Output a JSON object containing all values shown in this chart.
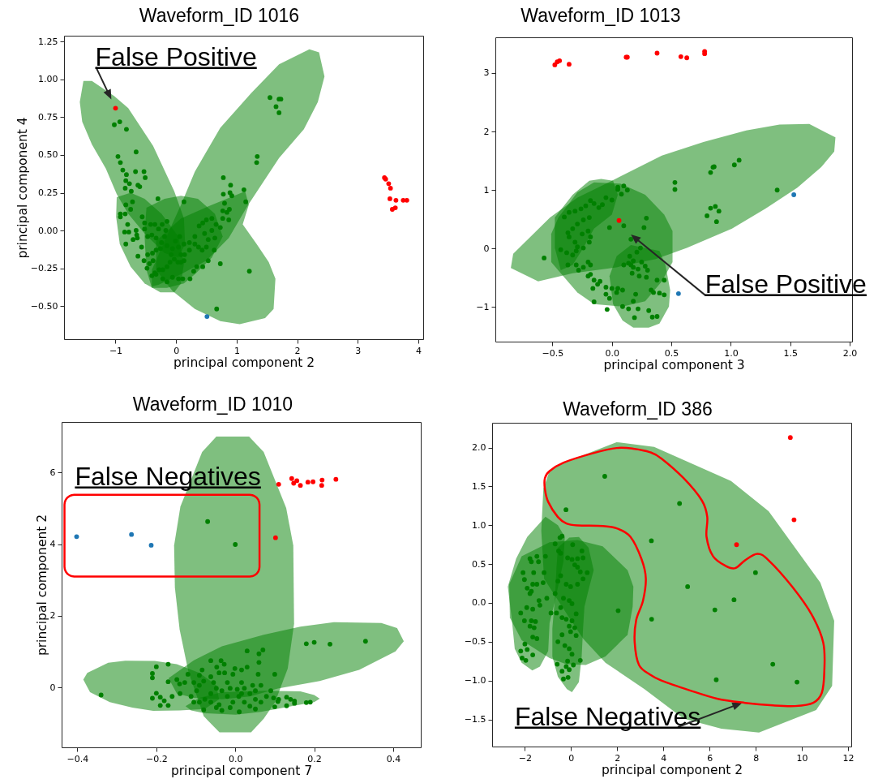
{
  "chart_data": [
    {
      "type": "scatter",
      "title": "Waveform_ID 1016",
      "xlabel": "principal component 2",
      "ylabel": "principal component 4",
      "xlim": [
        -1.85,
        4.08
      ],
      "ylim": [
        -0.72,
        1.29
      ],
      "xticks": [
        {
          "value": -1,
          "label": "−1"
        },
        0,
        1,
        2,
        3,
        4
      ],
      "yticks": [
        {
          "value": -0.5,
          "label": "−0.50"
        },
        {
          "value": -0.25,
          "label": "−0.25"
        },
        {
          "value": 0,
          "label": "0.00"
        },
        0.25,
        {
          "value": 0.5,
          "label": "0.50"
        },
        0.75,
        {
          "value": 1,
          "label": "1.00"
        },
        1.25
      ],
      "series": [
        {
          "type": "area",
          "color": "#008000",
          "x": [
            -1.53,
            -1.39,
            -1.02,
            -0.79,
            -0.38,
            -0.03,
            0.13,
            0.15,
            0.04,
            -0.19,
            -0.52,
            -0.79,
            -0.98,
            -1.16,
            -1.39,
            -1.55,
            -1.59
          ],
          "values": [
            0.99,
            0.99,
            0.89,
            0.81,
            0.56,
            0.26,
            0.08,
            -0.09,
            -0.18,
            -0.15,
            -0.02,
            0.11,
            0.24,
            0.41,
            0.57,
            0.72,
            0.85
          ]
        },
        {
          "type": "area",
          "color": "#008000",
          "x": [
            2.2,
            2.36,
            2.45,
            2.34,
            2.11,
            1.7,
            1.19,
            0.87,
            0.5,
            0.08,
            -0.29,
            -0.4,
            -0.4,
            -0.19,
            0.08,
            0.31,
            0.73,
            1.24,
            1.7
          ],
          "values": [
            1.2,
            1.18,
            1.02,
            0.85,
            0.67,
            0.48,
            0.17,
            -0.05,
            -0.2,
            -0.29,
            -0.36,
            -0.37,
            -0.26,
            -0.07,
            0.17,
            0.39,
            0.68,
            0.91,
            1.1
          ]
        },
        {
          "type": "area",
          "color": "#008000",
          "x": [
            -0.98,
            -0.75,
            -0.52,
            -0.24,
            0.04,
            0.13,
            0.08,
            -0.03,
            -0.26,
            -0.52,
            -0.75,
            -0.93,
            -0.99
          ],
          "values": [
            0.22,
            0.25,
            0.21,
            0.11,
            -0.04,
            -0.22,
            -0.35,
            -0.41,
            -0.41,
            -0.35,
            -0.24,
            -0.09,
            0.09
          ]
        },
        {
          "type": "area",
          "color": "#008000",
          "x": [
            -0.49,
            -0.19,
            0.08,
            0.36,
            0.64,
            0.77,
            0.59,
            0.31,
            0.13,
            -0.15,
            -0.4,
            -0.49,
            -0.52
          ],
          "values": [
            0.15,
            0.21,
            0.23,
            0.21,
            0.11,
            -0.04,
            -0.18,
            -0.29,
            -0.35,
            -0.38,
            -0.38,
            -0.26,
            -0.04
          ]
        },
        {
          "type": "area",
          "color": "#008000",
          "x": [
            -0.33,
            0.08,
            0.59,
            1.14,
            1.2,
            1.1,
            1.33,
            1.53,
            1.64,
            1.61,
            1.47,
            1.05,
            0.73,
            0.31,
            -0.06,
            -0.33
          ],
          "values": [
            -0.07,
            0.08,
            0.17,
            0.26,
            0.17,
            0.04,
            -0.09,
            -0.21,
            -0.32,
            -0.52,
            -0.58,
            -0.62,
            -0.6,
            -0.52,
            -0.4,
            -0.26
          ]
        },
        {
          "color": "#008000",
          "x": [
            -0.92,
            -0.92,
            -0.84,
            -0.8,
            -0.85,
            -0.78,
            -0.66,
            -0.65,
            -0.71,
            -0.64,
            -0.83,
            -0.63,
            -0.57,
            -0.53,
            -0.48,
            -0.44,
            -0.38,
            -0.35,
            -0.28,
            -0.22,
            -0.15,
            -0.1,
            -0.03,
            0.03,
            0.08,
            0.08,
            0.14,
            0.22,
            0.31,
            0.37,
            0.43,
            0.5,
            0.53,
            0.64,
            0.59,
            0.66,
            0.73,
            0.77,
            0.87,
            0.84,
            0.77,
            0.88,
            0.8,
            0.59,
            0.5,
            0.44,
            0.38,
            0.47,
            0.31,
            0.22,
            0.13,
            0.04,
            -0.06,
            -0.15,
            -0.24,
            -0.33,
            -0.4,
            -0.47,
            -0.52,
            -0.52,
            -0.56,
            -0.42,
            -0.35,
            -0.29,
            -0.23,
            -0.15,
            -0.17,
            -0.19,
            -0.26,
            -0.33,
            -0.39,
            -0.47,
            -0.22,
            -0.15,
            -0.06,
            0.04,
            0.11,
            0.23,
            0.29,
            0.34,
            0.44,
            0.53,
            0.63,
            0.06,
            -0.01,
            -0.08,
            0.13,
            -0.33,
            -0.4,
            -0.75,
            -0.72,
            -0.83,
            -1.02,
            -0.93,
            -0.82,
            -0.96,
            -0.92,
            -0.66,
            -0.88,
            -0.82,
            -0.67,
            -0.53,
            -0.51,
            -0.77,
            -0.83,
            -0.63,
            -0.6,
            -0.84,
            -0.74,
            0.78,
            0.9,
            0.89,
            0.92,
            1.12,
            1.15,
            0.78,
            -0.3,
            0.13,
            1.55,
            1.7,
            1.73,
            1.65,
            1.7,
            1.34,
            1.33,
            1.21,
            0.67,
            0.73
          ],
          "values": [
            0.11,
            0.09,
            0.11,
            0.04,
            -0.01,
            -0.01,
            0.0,
            -0.03,
            -0.06,
            -0.05,
            -0.09,
            -0.17,
            -0.11,
            -0.2,
            -0.25,
            -0.22,
            -0.2,
            -0.28,
            -0.26,
            -0.26,
            -0.24,
            -0.21,
            -0.19,
            -0.21,
            -0.21,
            -0.16,
            -0.16,
            -0.13,
            -0.09,
            -0.11,
            -0.13,
            -0.11,
            -0.06,
            -0.05,
            0.0,
            0.04,
            0.02,
            0.08,
            0.07,
            0.12,
            0.13,
            0.14,
            0.18,
            0.08,
            0.07,
            0.05,
            0.03,
            -0.02,
            -0.04,
            -0.08,
            -0.09,
            -0.11,
            -0.12,
            -0.1,
            -0.08,
            -0.05,
            -0.03,
            -0.04,
            0.01,
            0.05,
            0.09,
            0.04,
            0.04,
            0.01,
            0.04,
            0.06,
            0.0,
            -0.04,
            -0.12,
            -0.13,
            -0.15,
            -0.16,
            -0.32,
            -0.34,
            -0.31,
            -0.32,
            -0.32,
            -0.32,
            -0.27,
            -0.24,
            -0.24,
            -0.2,
            -0.13,
            -0.04,
            -0.07,
            -0.16,
            -0.2,
            -0.29,
            -0.3,
            0.14,
            0.19,
            0.17,
            0.7,
            0.72,
            0.67,
            0.49,
            0.45,
            0.52,
            0.4,
            0.37,
            0.39,
            0.39,
            0.35,
            0.31,
            0.33,
            0.3,
            0.29,
            0.28,
            0.26,
            0.35,
            0.3,
            0.25,
            0.23,
            0.27,
            0.19,
            0.24,
            0.21,
            0.19,
            0.88,
            0.87,
            0.87,
            0.82,
            0.78,
            0.49,
            0.45,
            -0.27,
            -0.52,
            -0.22
          ]
        },
        {
          "color": "#ff0000",
          "x": [
            -1.0,
            3.44,
            3.46,
            3.51,
            3.54,
            3.53,
            3.63,
            3.75,
            3.81,
            3.62,
            3.57
          ],
          "values": [
            0.81,
            0.35,
            0.34,
            0.31,
            0.28,
            0.21,
            0.2,
            0.2,
            0.2,
            0.15,
            0.14
          ]
        },
        {
          "color": "#1f77b4",
          "x": [
            0.51
          ],
          "values": [
            -0.57
          ]
        }
      ],
      "annotations": [
        {
          "text": "False Positive",
          "x": -1.0,
          "y": 0.81
        }
      ]
    },
    {
      "type": "scatter",
      "title": "Waveform_ID 1013",
      "xlabel": "principal component 3",
      "xlim": [
        -0.98,
        2.02
      ],
      "ylim": [
        -1.59,
        3.61
      ],
      "xticks": [
        {
          "value": -0.5,
          "label": "−0.5"
        },
        {
          "value": 0,
          "label": "0.0"
        },
        0.5,
        {
          "value": 1,
          "label": "1.0"
        },
        1.5,
        {
          "value": 2,
          "label": "2.0"
        }
      ],
      "yticks": [
        {
          "value": -1,
          "label": "−1"
        },
        0,
        1,
        2,
        3
      ],
      "series": [
        {
          "type": "area",
          "color": "#008000",
          "x": [
            -0.83,
            -0.52,
            -0.29,
            0.0,
            0.42,
            0.77,
            1.13,
            1.41,
            1.66,
            1.88,
            1.87,
            1.76,
            1.56,
            1.29,
            1.01,
            0.63,
            0.37,
            0.04,
            -0.33,
            -0.62,
            -0.85
          ],
          "values": [
            -0.09,
            0.53,
            0.87,
            1.16,
            1.59,
            1.82,
            2.02,
            2.12,
            2.13,
            1.9,
            1.66,
            1.39,
            1.04,
            0.68,
            0.34,
            0.01,
            -0.18,
            -0.32,
            -0.42,
            -0.56,
            -0.33
          ]
        },
        {
          "type": "area",
          "color": "#008000",
          "x": [
            -0.48,
            -0.33,
            -0.19,
            -0.09,
            0.01,
            0.05,
            0.0,
            -0.15,
            -0.24,
            -0.33,
            -0.43,
            -0.48
          ],
          "values": [
            0.53,
            0.92,
            1.16,
            1.19,
            1.16,
            0.92,
            0.58,
            0.34,
            0.01,
            -0.28,
            -0.37,
            0.01
          ]
        },
        {
          "type": "area",
          "color": "#008000",
          "x": [
            -0.51,
            -0.45,
            -0.29,
            -0.15,
            0.07,
            0.28,
            0.44,
            0.51,
            0.51,
            0.42,
            0.28,
            0.09,
            -0.15,
            -0.29,
            -0.43,
            -0.51
          ],
          "values": [
            0.25,
            0.53,
            0.96,
            1.13,
            1.11,
            0.92,
            0.58,
            0.3,
            -0.23,
            -0.56,
            -0.9,
            -0.99,
            -0.95,
            -0.75,
            -0.42,
            -0.23
          ]
        },
        {
          "type": "area",
          "color": "#008000",
          "x": [
            -0.02,
            0.04,
            0.16,
            0.4,
            0.45,
            0.49,
            0.48,
            0.4,
            0.31,
            0.18,
            0.09,
            0.01
          ],
          "values": [
            -0.47,
            -0.13,
            0.06,
            -0.04,
            -0.28,
            -0.71,
            -0.99,
            -1.28,
            -1.35,
            -1.35,
            -1.23,
            -0.95
          ]
        },
        {
          "color": "#008000",
          "x": [
            -0.57,
            -0.4,
            1.39,
            0.53,
            0.53,
            0.83,
            0.85,
            0.86,
            1.03,
            1.07,
            0.8,
            0.83,
            0.87,
            0.9,
            0.88,
            0.29,
            0.27,
            0.1,
            -0.02,
            0.05,
            0.1,
            0.13,
            0.08,
            0.05,
            -0.36,
            -0.31,
            -0.26,
            -0.22,
            -0.18,
            -0.15,
            -0.11,
            -0.08,
            -0.05,
            0.0,
            -0.19,
            -0.24,
            -0.29,
            -0.33,
            -0.37,
            -0.36,
            -0.31,
            -0.29,
            -0.24,
            -0.19,
            -0.18,
            -0.2,
            -0.25,
            -0.3,
            -0.33,
            -0.43,
            -0.38,
            -0.37,
            -0.3,
            -0.28,
            -0.24,
            -0.2,
            -0.18,
            -0.2,
            -0.18,
            -0.15,
            -0.12,
            -0.1,
            -0.16,
            -0.15,
            -0.05,
            -0.05,
            -0.02,
            -0.04,
            0.0,
            0.04,
            0.05,
            0.09,
            0.09,
            0.1,
            0.14,
            0.16,
            0.15,
            0.18,
            0.21,
            0.25,
            0.28,
            0.24,
            0.3,
            0.17,
            0.18,
            0.22,
            0.23,
            0.29,
            0.2,
            0.18,
            0.22,
            0.14,
            0.19,
            0.31,
            0.34,
            0.38,
            0.4,
            0.38,
            0.44,
            0.44,
            0.35,
            0.33,
            0.16
          ],
          "values": [
            -0.16,
            0.54,
            1.0,
            1.13,
            1.01,
            1.3,
            1.39,
            1.4,
            1.43,
            1.51,
            0.56,
            0.69,
            0.72,
            0.64,
            0.46,
            0.52,
            0.36,
            0.39,
            0.36,
            1.05,
            1.07,
            1.0,
            0.93,
            1.01,
            0.62,
            0.64,
            0.68,
            0.73,
            0.82,
            0.77,
            0.7,
            0.75,
            0.87,
            0.83,
            0.53,
            0.49,
            0.42,
            0.34,
            0.27,
            0.2,
            0.11,
            0.03,
            0.01,
            0.11,
            0.2,
            0.3,
            0.25,
            -0.04,
            -0.11,
            -0.02,
            -0.07,
            -0.28,
            -0.28,
            -0.37,
            -0.32,
            -0.23,
            -0.28,
            -0.47,
            -0.44,
            -0.54,
            -0.61,
            -0.56,
            -0.68,
            -0.91,
            -0.66,
            -0.78,
            -0.85,
            -1.04,
            -0.68,
            -0.75,
            -0.68,
            -0.71,
            -0.99,
            -0.28,
            -0.25,
            -0.28,
            -0.13,
            -0.21,
            -0.06,
            -0.23,
            -0.3,
            0.01,
            -0.37,
            -0.42,
            -0.32,
            -0.35,
            -0.47,
            -0.49,
            -0.78,
            -0.9,
            -1.03,
            -1.03,
            -1.18,
            -1.06,
            -1.17,
            -1.16,
            -0.76,
            -0.54,
            -0.54,
            -0.79,
            -0.75,
            -0.71,
            0.16
          ]
        },
        {
          "color": "#ff0000",
          "x": [
            -0.48,
            -0.46,
            -0.44,
            -0.36,
            0.12,
            0.13,
            0.38,
            0.58,
            0.63,
            0.78,
            0.78,
            0.06
          ],
          "values": [
            3.14,
            3.19,
            3.21,
            3.15,
            3.27,
            3.27,
            3.34,
            3.28,
            3.26,
            3.37,
            3.33,
            0.48
          ]
        },
        {
          "color": "#1f77b4",
          "x": [
            1.53,
            0.56
          ],
          "values": [
            0.92,
            -0.77
          ]
        }
      ],
      "annotations": [
        "False Positive"
      ]
    },
    {
      "type": "scatter",
      "title": "Waveform_ID 1010",
      "xlabel": "principal component 7",
      "ylabel": "principal component 2",
      "xlim": [
        -0.44,
        0.47
      ],
      "ylim": [
        -1.67,
        7.41
      ],
      "xticks": [
        {
          "value": -0.4,
          "label": "−0.4"
        },
        {
          "value": -0.2,
          "label": "−0.2"
        },
        {
          "value": 0,
          "label": "0.0"
        },
        0.2,
        0.4
      ],
      "yticks": [
        0,
        2,
        4,
        6
      ],
      "series": [
        {
          "type": "area",
          "color": "#008000",
          "x": [
            -0.084,
            -0.048,
            0.035,
            0.072,
            0.129,
            0.147,
            0.149,
            0.133,
            0.101,
            0.072,
            0.04,
            -0.04,
            -0.08,
            -0.119,
            -0.141,
            -0.153,
            -0.155,
            -0.139
          ],
          "values": [
            6.57,
            7.0,
            7.0,
            6.57,
            5.01,
            3.96,
            1.78,
            0.53,
            -0.41,
            -0.87,
            -1.25,
            -1.25,
            -0.8,
            0.45,
            1.62,
            2.79,
            3.96,
            5.05
          ]
        },
        {
          "type": "area",
          "color": "#008000",
          "x": [
            -0.385,
            -0.375,
            -0.322,
            -0.279,
            -0.204,
            -0.148,
            -0.091,
            -0.048,
            -0.041,
            -0.077,
            -0.141,
            -0.208,
            -0.261,
            -0.318,
            -0.368
          ],
          "values": [
            0.22,
            0.41,
            0.69,
            0.75,
            0.74,
            0.65,
            0.41,
            0.06,
            -0.33,
            -0.6,
            -0.64,
            -0.65,
            -0.56,
            -0.41,
            -0.13
          ]
        },
        {
          "type": "area",
          "color": "#008000",
          "x": [
            -0.169,
            -0.105,
            -0.034,
            0.072,
            0.165,
            0.25,
            0.37,
            0.41,
            0.427,
            0.406,
            0.314,
            0.214,
            0.108,
            0.037,
            -0.034,
            -0.105,
            -0.148
          ],
          "values": [
            0.26,
            0.76,
            1.15,
            1.47,
            1.7,
            1.82,
            1.8,
            1.66,
            1.29,
            1.01,
            0.49,
            0.18,
            -0.03,
            -0.25,
            -0.33,
            -0.29,
            -0.17
          ]
        },
        {
          "type": "area",
          "color": "#008000",
          "x": [
            -0.126,
            -0.091,
            -0.034,
            0.072,
            0.165,
            0.2,
            0.214,
            0.2,
            0.143,
            0.065,
            0.001,
            -0.077,
            -0.112
          ],
          "values": [
            -0.52,
            -0.29,
            -0.13,
            -0.09,
            -0.11,
            -0.21,
            -0.31,
            -0.41,
            -0.52,
            -0.68,
            -0.76,
            -0.72,
            -0.64
          ]
        },
        {
          "color": "#008000",
          "x": [
            -0.07,
            0.0,
            0.18,
            0.2,
            0.24,
            0.33,
            -0.34,
            0.03,
            0.06,
            0.07,
            0.06,
            0.1,
            -0.2,
            -0.21,
            -0.21,
            -0.17,
            -0.12,
            -0.17,
            -0.2,
            -0.21,
            -0.19,
            -0.18,
            -0.19,
            -0.17,
            -0.16,
            -0.14,
            0.13,
            0.14,
            0.15,
            0.15,
            0.13,
            0.1,
            0.11,
            0.18,
            0.19,
            -0.08,
            0.01,
            -0.148,
            -0.141,
            -0.128,
            -0.105,
            -0.091,
            -0.084,
            -0.062,
            -0.036,
            -0.028,
            -0.047,
            -0.041,
            -0.062,
            -0.055,
            -0.048,
            -0.062,
            -0.077,
            -0.091,
            -0.062,
            -0.041,
            -0.034,
            -0.02,
            -0.006,
            -0.001,
            0.016,
            0.03,
            0.016,
            0.023,
            0.037,
            0.051,
            0.065,
            0.079,
            0.09,
            0.065,
            0.051,
            0.009,
            -0.006,
            0.023,
            0.037,
            0.051,
            -0.02,
            -0.013,
            -0.048,
            -0.034,
            -0.105,
            -0.098,
            -0.112,
            0.108,
            -0.091,
            -0.08,
            -0.027,
            -0.013,
            0.005,
            0.016,
            0.044,
            0.058,
            0.097
          ],
          "values": [
            4.63,
            3.99,
            1.22,
            1.26,
            1.21,
            1.29,
            -0.21,
            1.02,
            0.94,
            1.05,
            0.7,
            0.37,
            0.58,
            0.39,
            0.27,
            0.65,
            0.37,
            0.16,
            -0.16,
            -0.3,
            -0.27,
            -0.37,
            -0.5,
            -0.5,
            -0.25,
            -0.17,
            -0.27,
            -0.33,
            -0.38,
            -0.44,
            -0.51,
            -0.54,
            -0.33,
            -0.42,
            -0.41,
            -0.62,
            -0.68,
            0.22,
            0.1,
            0.14,
            0.14,
            0.34,
            0.49,
            0.75,
            0.75,
            0.65,
            0.57,
            0.41,
            0.3,
            0.14,
            -0.02,
            -0.17,
            -0.33,
            -0.41,
            -0.41,
            -0.48,
            -0.09,
            0.14,
            0.37,
            0.53,
            0.49,
            0.57,
            0.14,
            -0.02,
            -0.17,
            -0.33,
            -0.41,
            -0.25,
            -0.09,
            0.06,
            -0.09,
            -0.25,
            -0.41,
            -0.41,
            -0.52,
            -0.6,
            -0.25,
            -0.56,
            -0.56,
            -0.64,
            -0.41,
            -0.09,
            -0.25,
            -0.39,
            0.06,
            0.18,
            0.41,
            -0.02,
            -0.05,
            -0.17,
            0.06,
            0.37,
            -0.29
          ]
        },
        {
          "color": "#ff0000",
          "x": [
            0.11,
            0.143,
            0.148,
            0.156,
            0.165,
            0.184,
            0.197,
            0.22,
            0.219,
            0.255,
            0.102
          ],
          "values": [
            5.67,
            5.83,
            5.7,
            5.77,
            5.64,
            5.73,
            5.74,
            5.79,
            5.64,
            5.81,
            4.18
          ]
        },
        {
          "color": "#1f77b4",
          "x": [
            -0.402,
            -0.263,
            -0.213
          ],
          "values": [
            4.21,
            4.27,
            3.97
          ]
        }
      ],
      "annotations": [
        "False Negatives"
      ]
    },
    {
      "type": "scatter",
      "title": "Waveform_ID 386",
      "xlabel": "principal component 2",
      "xlim": [
        -3.42,
        12.14
      ],
      "ylim": [
        -1.85,
        2.32
      ],
      "xticks": [
        {
          "value": -2,
          "label": "−2"
        },
        0,
        2,
        4,
        6,
        8,
        10,
        12
      ],
      "yticks": [
        {
          "value": -1.5,
          "label": "−1.5"
        },
        {
          "value": -1,
          "label": "−1.0"
        },
        {
          "value": -0.5,
          "label": "−0.5"
        },
        {
          "value": 0,
          "label": "0.0"
        },
        0.5,
        {
          "value": 1,
          "label": "1.0"
        },
        1.5,
        {
          "value": 2,
          "label": "2.0"
        }
      ],
      "series": [
        {
          "type": "area",
          "color": "#008000",
          "x": [
            -1.2,
            -0.93,
            -0.45,
            1.97,
            3.6,
            6.93,
            8.56,
            10.8,
            11.4,
            11.31,
            10.62,
            8.14,
            6.51,
            4.87,
            3.18,
            1.49,
            0.52,
            -0.08,
            -1.17,
            -1.29
          ],
          "values": [
            1.47,
            1.7,
            1.79,
            2.07,
            2.01,
            1.57,
            1.18,
            0.26,
            -0.23,
            -1.07,
            -1.38,
            -1.67,
            -1.62,
            -1.49,
            -1.11,
            -0.77,
            -0.46,
            -0.19,
            0.31,
            0.93
          ]
        },
        {
          "type": "area",
          "color": "#008000",
          "x": [
            -2.74,
            -2.38,
            -1.9,
            -1.11,
            -0.57,
            -0.27,
            -0.33,
            -0.69,
            -0.93,
            -0.99,
            -1.35,
            -1.68,
            -2.14,
            -2.44,
            -2.56
          ],
          "values": [
            0.21,
            0.57,
            0.85,
            1.11,
            1.0,
            0.85,
            0.53,
            0.03,
            -0.26,
            -0.62,
            -0.82,
            -0.87,
            -0.77,
            -0.59,
            -0.23
          ]
        },
        {
          "type": "area",
          "color": "#008000",
          "x": [
            -2.68,
            -2.14,
            -0.93,
            0.28,
            1.37,
            2.45,
            2.7,
            2.67,
            2.45,
            1.49,
            0.64,
            -0.21,
            -0.93,
            -2.14,
            -2.65
          ],
          "values": [
            0.24,
            0.6,
            0.78,
            0.81,
            0.73,
            0.42,
            0.21,
            -0.05,
            -0.41,
            -0.69,
            -0.8,
            -0.79,
            -0.71,
            -0.48,
            -0.19
          ]
        },
        {
          "type": "area",
          "color": "#008000",
          "x": [
            -0.57,
            -0.08,
            0.34,
            0.76,
            0.98,
            0.76,
            0.58,
            0.52,
            0.46,
            0.34,
            0.04,
            -0.18,
            -0.57,
            -0.81,
            -0.81,
            -0.69,
            -0.63
          ],
          "values": [
            0.71,
            0.84,
            0.85,
            0.71,
            0.42,
            0.17,
            -0.05,
            -0.33,
            -0.69,
            -1.02,
            -1.15,
            -1.11,
            -0.95,
            -0.69,
            -0.33,
            0.1,
            0.46
          ]
        },
        {
          "color": "#008000",
          "x": [
            1.46,
            -0.22,
            4.7,
            3.48,
            5.05,
            2.04,
            3.49,
            6.23,
            7.06,
            7.99,
            8.74,
            6.29,
            9.79,
            -1.78,
            -1.72,
            -1.48,
            -1.11,
            -1.41,
            -2.08,
            -1.62,
            -1.17,
            -2.02,
            -1.66,
            -1.48,
            -1.21,
            -1.9,
            -1.72,
            -1.78,
            -1.39,
            -1.05,
            -2.18,
            -1.92,
            -1.66,
            -1.35,
            -2.02,
            -1.72,
            -1.54,
            -1.78,
            -1.6,
            -1.66,
            -1.48,
            -2.0,
            -1.9,
            -2.18,
            -2.12,
            -1.96,
            -1.66,
            -0.48,
            -0.39,
            -0.69,
            0.07,
            -0.54,
            -0.45,
            -0.15,
            0.04,
            0.28,
            0.47,
            0.52,
            0.16,
            0.28,
            0.4,
            0.7,
            0.52,
            0.28,
            -0.02,
            -0.21,
            -0.45,
            -0.57,
            -0.69,
            -0.33,
            -0.08,
            0.04,
            -0.45,
            -0.87,
            -0.63,
            -0.39,
            -0.21,
            0.04,
            0.22,
            0.16,
            -0.08,
            -0.02,
            0.22,
            -0.39,
            -0.57,
            -0.27,
            -0.08,
            0.04,
            -0.15,
            0.1,
            -0.21,
            -0.39,
            -0.08,
            -0.33,
            -0.13,
            -0.6,
            0.4
          ],
          "values": [
            1.63,
            1.2,
            1.28,
            0.8,
            0.21,
            -0.1,
            -0.21,
            -0.09,
            0.04,
            0.39,
            -0.79,
            -0.99,
            -1.02,
            0.57,
            0.53,
            0.6,
            0.6,
            0.53,
            0.39,
            0.39,
            0.39,
            0.3,
            0.24,
            0.24,
            0.26,
            0.19,
            0.15,
            0.12,
            0.03,
            0.06,
            -0.13,
            -0.06,
            -0.08,
            -0.03,
            -0.23,
            -0.23,
            -0.24,
            -0.3,
            -0.32,
            -0.44,
            -0.46,
            -0.53,
            -0.6,
            -0.62,
            -0.71,
            -0.74,
            -0.67,
            0.84,
            0.86,
            0.76,
            0.75,
            0.67,
            0.64,
            0.58,
            0.56,
            0.57,
            0.67,
            0.58,
            0.49,
            0.46,
            0.4,
            0.39,
            0.31,
            0.24,
            0.21,
            0.24,
            0.35,
            0.28,
            0.12,
            0.06,
            0.03,
            -0.01,
            -0.06,
            -0.13,
            -0.13,
            -0.19,
            -0.21,
            -0.23,
            -0.14,
            -0.32,
            -0.3,
            -0.37,
            -0.42,
            -0.41,
            -0.5,
            -0.55,
            -0.59,
            -0.66,
            -0.75,
            -0.8,
            -0.82,
            -0.88,
            -0.86,
            -0.98,
            -0.96,
            -0.79,
            -0.74
          ]
        },
        {
          "color": "#ff0000",
          "x": [
            9.5,
            9.66,
            7.17
          ],
          "values": [
            2.13,
            1.07,
            0.75
          ]
        }
      ],
      "annotations": [
        "False Negatives"
      ]
    }
  ]
}
